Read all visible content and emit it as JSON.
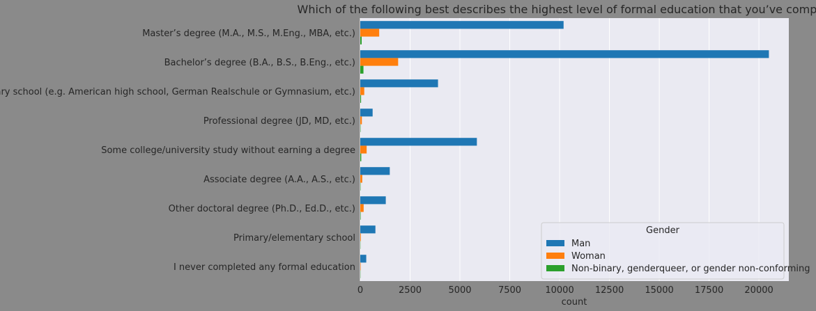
{
  "chart_data": {
    "type": "bar",
    "orientation": "horizontal",
    "title": "Which of the following best describes the highest level of formal education that you’ve completed?",
    "xlabel": "count",
    "ylabel": "",
    "xlim": [
      0,
      21500
    ],
    "xticks": [
      0,
      2500,
      5000,
      7500,
      10000,
      12500,
      15000,
      17500,
      20000
    ],
    "grid": true,
    "categories": [
      "Master’s degree (M.A., M.S., M.Eng., MBA, etc.)",
      "Bachelor’s degree (B.A., B.S., B.Eng., etc.)",
      "Secondary school (e.g. American high school, German Realschule or Gymnasium, etc.)",
      "Professional degree (JD, MD, etc.)",
      "Some college/university study without earning a degree",
      "Associate degree (A.A., A.S., etc.)",
      "Other doctoral degree (Ph.D., Ed.D., etc.)",
      "Primary/elementary school",
      "I never completed any formal education"
    ],
    "series": [
      {
        "name": "Man",
        "color": "#1f77b4",
        "values": [
          10200,
          20500,
          3900,
          620,
          5850,
          1480,
          1280,
          760,
          300
        ]
      },
      {
        "name": "Woman",
        "color": "#ff7f0e",
        "values": [
          950,
          1900,
          200,
          80,
          320,
          100,
          170,
          30,
          20
        ]
      },
      {
        "name": "Non-binary, genderqueer, or gender non-conforming",
        "color": "#2ca02c",
        "values": [
          70,
          160,
          40,
          15,
          50,
          15,
          20,
          10,
          10
        ]
      }
    ],
    "legend": {
      "title": "Gender",
      "position": "lower-right"
    }
  }
}
